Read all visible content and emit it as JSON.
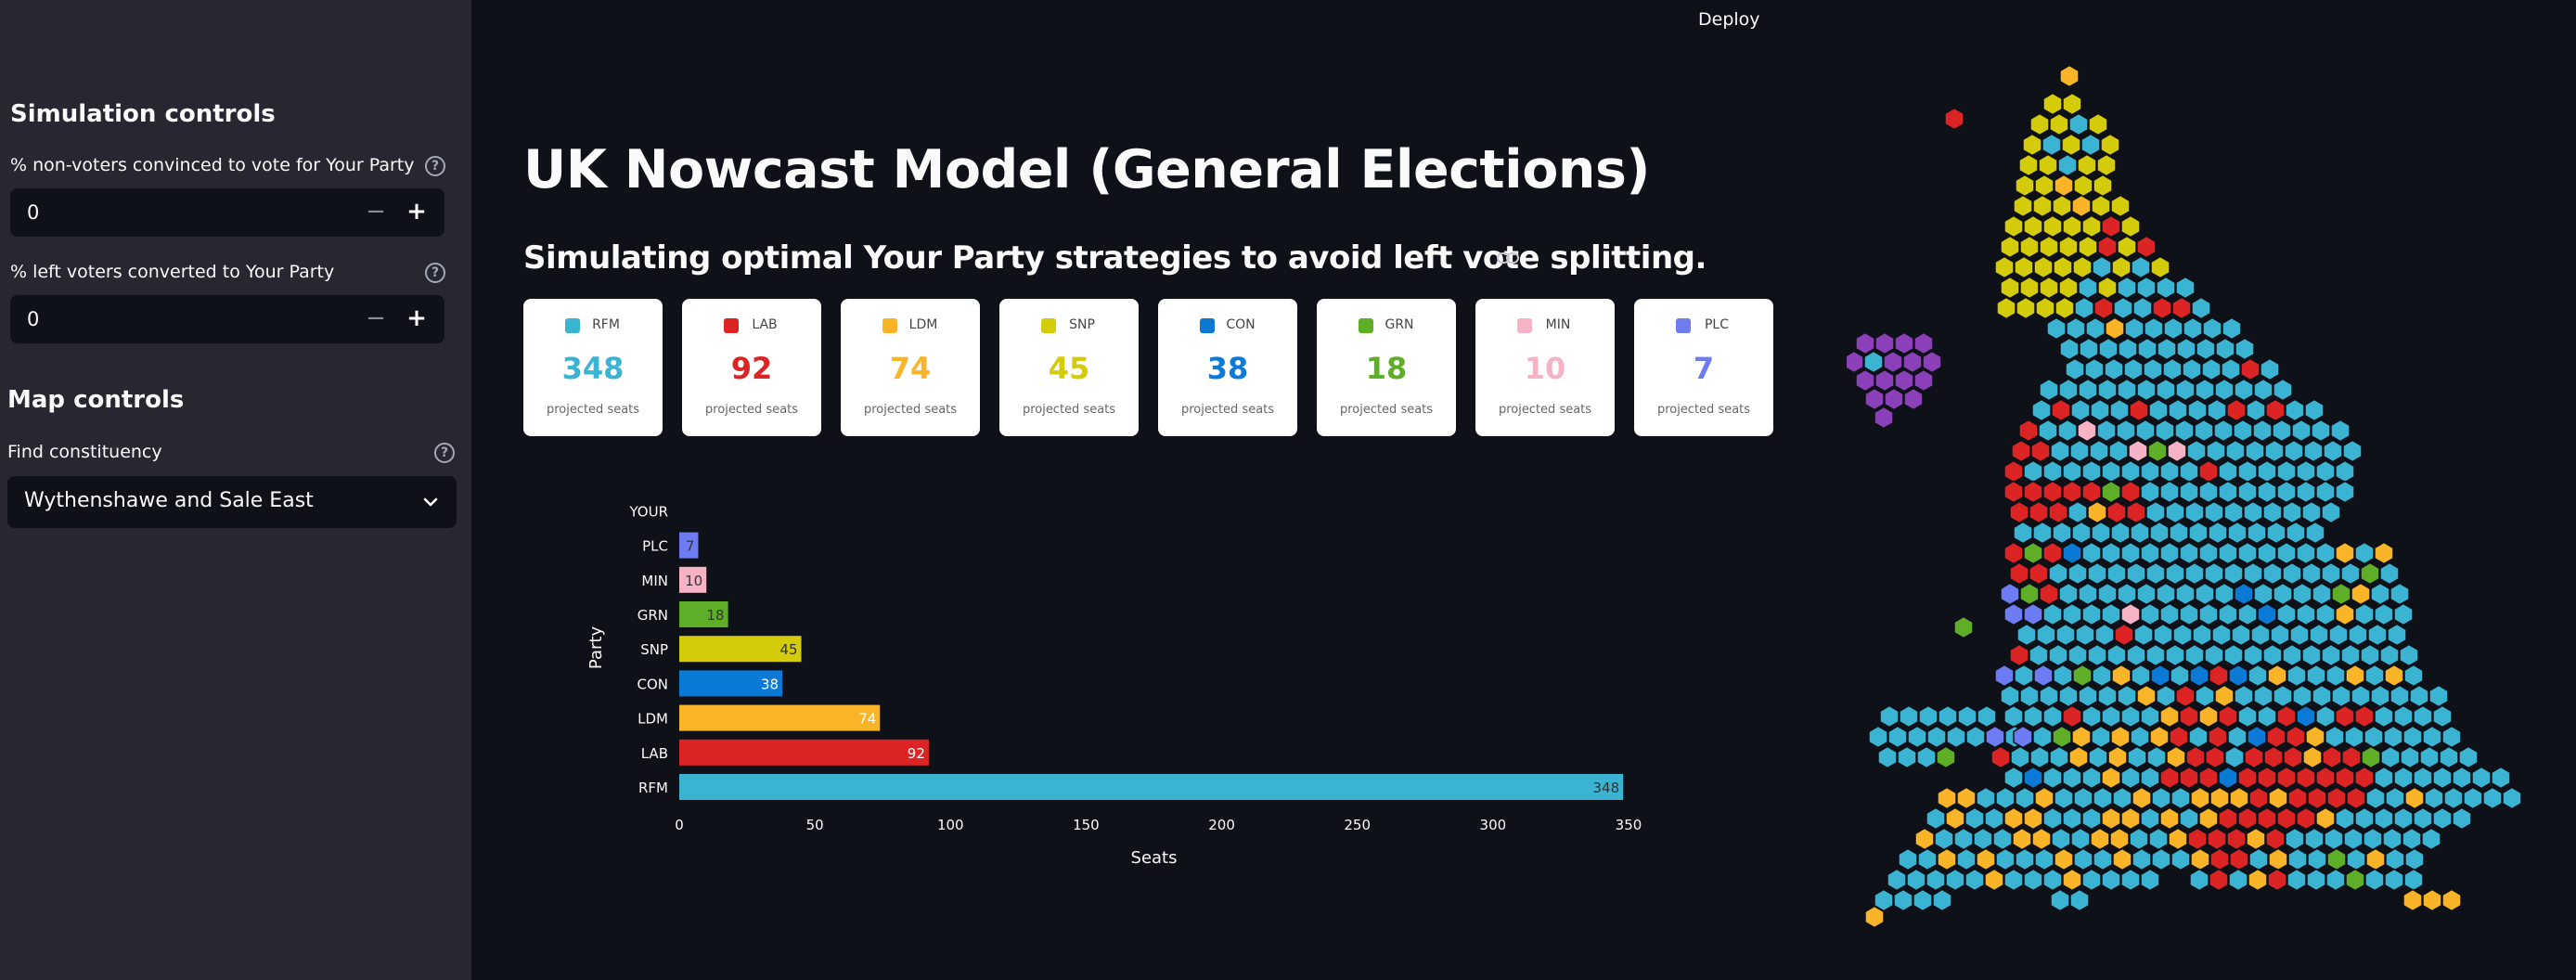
{
  "sidebar": {
    "simulation_heading": "Simulation controls",
    "nonvoters_label": "% non-voters convinced to vote for Your Party",
    "nonvoters_value": "0",
    "left_label": "% left voters converted to Your Party",
    "left_value": "0",
    "map_heading": "Map controls",
    "find_label": "Find constituency",
    "constituency_value": "Wythenshawe and Sale East",
    "help_glyph": "?",
    "minus_glyph": "−",
    "plus_glyph": "+"
  },
  "header": {
    "deploy_label": "Deploy"
  },
  "main": {
    "title": "UK Nowcast Model (General Elections)",
    "subtitle": "Simulating optimal Your Party strategies to avoid left vote splitting."
  },
  "cards": [
    {
      "abbr": "RFM",
      "seats": "348",
      "caption": "projected seats",
      "color": "#3bb4d3"
    },
    {
      "abbr": "LAB",
      "seats": "92",
      "caption": "projected seats",
      "color": "#dd2424"
    },
    {
      "abbr": "LDM",
      "seats": "74",
      "caption": "projected seats",
      "color": "#fab427"
    },
    {
      "abbr": "SNP",
      "seats": "45",
      "caption": "projected seats",
      "color": "#d4cb0a"
    },
    {
      "abbr": "CON",
      "seats": "38",
      "caption": "projected seats",
      "color": "#0a7ad6"
    },
    {
      "abbr": "GRN",
      "seats": "18",
      "caption": "projected seats",
      "color": "#5fae27"
    },
    {
      "abbr": "MIN",
      "seats": "10",
      "caption": "projected seats",
      "color": "#f6b3c6"
    },
    {
      "abbr": "PLC",
      "seats": "7",
      "caption": "projected seats",
      "color": "#6d7cf2"
    }
  ],
  "chart_data": {
    "type": "bar",
    "orientation": "horizontal",
    "categories": [
      "RFM",
      "LAB",
      "LDM",
      "CON",
      "SNP",
      "GRN",
      "MIN",
      "PLC",
      "YOUR"
    ],
    "values": [
      348,
      92,
      74,
      38,
      45,
      18,
      10,
      7,
      0
    ],
    "colors": [
      "#3bb4d3",
      "#dd2424",
      "#fab427",
      "#0a7ad6",
      "#d4cb0a",
      "#5fae27",
      "#f6b3c6",
      "#6d7cf2",
      "#9b59b6"
    ],
    "xlabel": "Seats",
    "ylabel": "Party",
    "xlim": [
      0,
      350
    ],
    "xticks": [
      0,
      50,
      100,
      150,
      200,
      250,
      300,
      350
    ]
  },
  "map": {
    "palette": [
      "#3bb4d3",
      "#dd2424",
      "#fab427",
      "#d4cb0a",
      "#0a7ad6",
      "#5fae27",
      "#f6b3c6",
      "#6d7cf2",
      "#8b3fb8"
    ]
  }
}
